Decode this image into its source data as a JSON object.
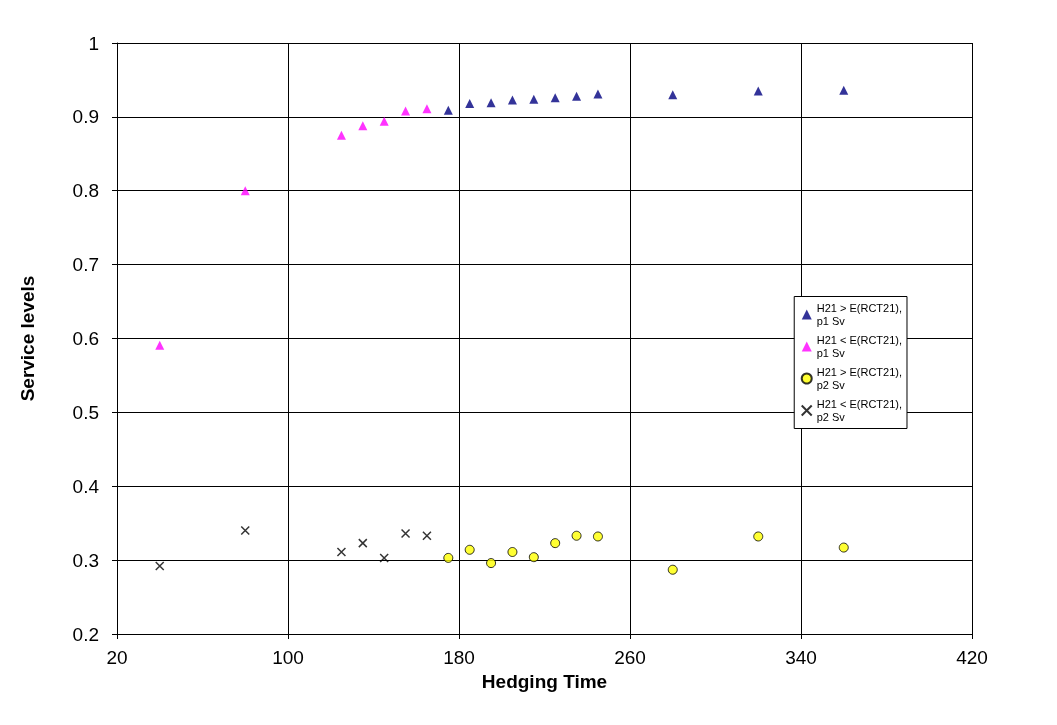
{
  "chart_data": {
    "type": "scatter",
    "xlabel": "Hedging Time",
    "ylabel": "Service levels",
    "xlim": [
      20,
      420
    ],
    "xticks": [
      20,
      100,
      180,
      260,
      340,
      420
    ],
    "ylim": [
      0.2,
      1
    ],
    "yticks": [
      0.2,
      0.3,
      0.4,
      0.5,
      0.6,
      0.7,
      0.8,
      0.9,
      1
    ],
    "grid": true,
    "legend": "right",
    "series": [
      {
        "name": "H21 > E(RCT21),\np1 Sv",
        "color": "#000080",
        "marker": "triangle",
        "x": [
          175,
          185,
          195,
          205,
          215,
          225,
          235,
          245,
          280,
          320,
          360
        ],
        "values": [
          0.909,
          0.918,
          0.919,
          0.923,
          0.924,
          0.926,
          0.928,
          0.931,
          0.93,
          0.935,
          0.936
        ]
      },
      {
        "name": "H21 < E(RCT21),\np1 Sv",
        "color": "#ff00ff",
        "marker": "triangle",
        "x": [
          40,
          80,
          125,
          135,
          145,
          155,
          165
        ],
        "values": [
          0.591,
          0.8,
          0.875,
          0.888,
          0.894,
          0.908,
          0.911
        ]
      },
      {
        "name": "H21 > E(RCT21),\np2 Sv",
        "color": "#ffff00",
        "marker": "circle",
        "x": [
          175,
          185,
          195,
          205,
          215,
          225,
          235,
          245,
          280,
          320,
          360
        ],
        "values": [
          0.303,
          0.314,
          0.296,
          0.311,
          0.304,
          0.323,
          0.333,
          0.332,
          0.287,
          0.332,
          0.317
        ]
      },
      {
        "name": "H21 < E(RCT21),\np2 Sv",
        "color": "#000000",
        "marker": "cross",
        "x": [
          40,
          80,
          125,
          135,
          145,
          155,
          165
        ],
        "values": [
          0.292,
          0.34,
          0.311,
          0.323,
          0.303,
          0.336,
          0.333
        ]
      }
    ]
  }
}
